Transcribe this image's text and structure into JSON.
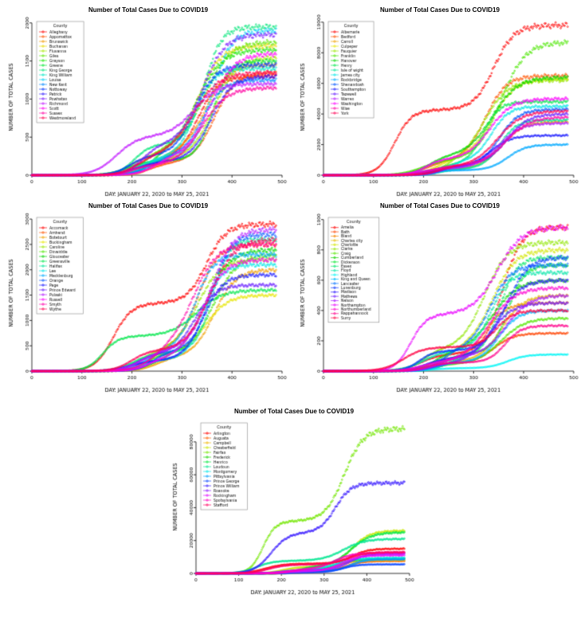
{
  "page": {
    "background": "#ffffff"
  },
  "chart_data": [
    {
      "type": "scatter",
      "title": "Number of Total Cases Due to COVID19",
      "xlabel": "DAY: JANUARY 22, 2020 to MAY 25, 2021",
      "ylabel": "NUMBER OF TOTAL CASES",
      "legend_title": "County",
      "legend_position": "top-left",
      "grid": false,
      "xlim": [
        0,
        500
      ],
      "ylim": [
        0,
        2050
      ],
      "xticks": [
        0,
        100,
        200,
        300,
        400,
        500
      ],
      "yticks": [
        0,
        500,
        1000,
        1500,
        2000
      ],
      "x_days": [
        0,
        489
      ],
      "series": [
        {
          "name": "Alleghany",
          "color": "hsl(0,100%,50%)",
          "final": 1300
        },
        {
          "name": "Appomattox",
          "color": "hsl(19,100%,50%)",
          "final": 1350
        },
        {
          "name": "Brunswick",
          "color": "hsl(38,100%,47%)",
          "final": 1450
        },
        {
          "name": "Buchanan",
          "color": "hsl(57,100%,45%)",
          "final": 1700
        },
        {
          "name": "Fluvanna",
          "color": "hsl(76,100%,45%)",
          "final": 1550
        },
        {
          "name": "Giles",
          "color": "hsl(95,100%,45%)",
          "final": 1750
        },
        {
          "name": "Grayson",
          "color": "hsl(114,100%,45%)",
          "final": 1650
        },
        {
          "name": "Greene",
          "color": "hsl(133,100%,45%)",
          "final": 1500
        },
        {
          "name": "King George",
          "color": "hsl(152,100%,45%)",
          "final": 1950
        },
        {
          "name": "King William",
          "color": "hsl(171,100%,45%)",
          "final": 1400
        },
        {
          "name": "Louisa",
          "color": "hsl(189,100%,48%)",
          "final": 1900
        },
        {
          "name": "New Kent",
          "color": "hsl(208,100%,50%)",
          "final": 1250
        },
        {
          "name": "Nottoway",
          "color": "hsl(227,100%,50%)",
          "final": 1450
        },
        {
          "name": "Patrick",
          "color": "hsl(246,100%,55%)",
          "final": 1300
        },
        {
          "name": "Powhatan",
          "color": "hsl(265,100%,55%)",
          "final": 1850
        },
        {
          "name": "Richmond",
          "color": "hsl(284,100%,55%)",
          "final": 1200,
          "early": true
        },
        {
          "name": "Scott",
          "color": "hsl(303,100%,50%)",
          "final": 1600
        },
        {
          "name": "Sussex",
          "color": "hsl(322,100%,50%)",
          "final": 1150
        },
        {
          "name": "Westmoreland",
          "color": "hsl(341,100%,50%)",
          "final": 1350
        }
      ]
    },
    {
      "type": "scatter",
      "title": "Number of Total Cases Due to COVID19",
      "xlabel": "DAY: JANUARY 22, 2020 to MAY 25, 2021",
      "ylabel": "NUMBER OF TOTAL CASES",
      "legend_title": "County",
      "legend_position": "top-left",
      "grid": false,
      "xlim": [
        0,
        500
      ],
      "ylim": [
        0,
        10200
      ],
      "xticks": [
        0,
        100,
        200,
        300,
        400,
        500
      ],
      "yticks": [
        0,
        2000,
        4000,
        6000,
        8000,
        10000
      ],
      "x_days": [
        0,
        489
      ],
      "series": [
        {
          "name": "Albemarle",
          "color": "hsl(0,100%,50%)",
          "final": 9800,
          "early": true
        },
        {
          "name": "Bedford",
          "color": "hsl(20,100%,50%)",
          "final": 6500
        },
        {
          "name": "Carroll",
          "color": "hsl(40,100%,47%)",
          "final": 3500
        },
        {
          "name": "Culpeper",
          "color": "hsl(60,100%,45%)",
          "final": 6300
        },
        {
          "name": "Fauquier",
          "color": "hsl(80,100%,45%)",
          "final": 6200
        },
        {
          "name": "Franklin",
          "color": "hsl(100,100%,45%)",
          "final": 8700
        },
        {
          "name": "Hanover",
          "color": "hsl(120,100%,42%)",
          "final": 6400
        },
        {
          "name": "Henry",
          "color": "hsl(140,100%,45%)",
          "final": 4800
        },
        {
          "name": "Isle of wight",
          "color": "hsl(160,100%,45%)",
          "final": 3600
        },
        {
          "name": "James city",
          "color": "hsl(180,100%,45%)",
          "final": 4500
        },
        {
          "name": "Rockbridge",
          "color": "hsl(200,100%,50%)",
          "final": 2000
        },
        {
          "name": "Shenandoah",
          "color": "hsl(220,100%,50%)",
          "final": 4300
        },
        {
          "name": "Southampton",
          "color": "hsl(240,100%,55%)",
          "final": 2600
        },
        {
          "name": "Tazewell",
          "color": "hsl(260,100%,55%)",
          "final": 4000
        },
        {
          "name": "Warren",
          "color": "hsl(280,100%,55%)",
          "final": 3400
        },
        {
          "name": "Washington",
          "color": "hsl(300,100%,50%)",
          "final": 5000
        },
        {
          "name": "Wise",
          "color": "hsl(320,100%,50%)",
          "final": 3800
        },
        {
          "name": "York",
          "color": "hsl(340,100%,50%)",
          "final": 4200
        }
      ]
    },
    {
      "type": "scatter",
      "title": "Number of Total Cases Due to COVID19",
      "xlabel": "DAY: JANUARY 22, 2020 to MAY 25, 2021",
      "ylabel": "NUMBER OF TOTAL CASES",
      "legend_title": "County",
      "legend_position": "top-left",
      "grid": false,
      "xlim": [
        0,
        500
      ],
      "ylim": [
        0,
        3080
      ],
      "xticks": [
        0,
        100,
        200,
        300,
        400,
        500
      ],
      "yticks": [
        0,
        500,
        1000,
        1500,
        2000,
        2500,
        3000
      ],
      "x_days": [
        0,
        489
      ],
      "series": [
        {
          "name": "Accomack",
          "color": "hsl(0,100%,50%)",
          "final": 2900,
          "early": true
        },
        {
          "name": "Amherst",
          "color": "hsl(20,100%,50%)",
          "final": 2500
        },
        {
          "name": "Botetourt",
          "color": "hsl(40,100%,47%)",
          "final": 2000
        },
        {
          "name": "Buckingham",
          "color": "hsl(60,100%,45%)",
          "final": 1500
        },
        {
          "name": "Caroline",
          "color": "hsl(80,100%,45%)",
          "final": 2200
        },
        {
          "name": "Dinwiddie",
          "color": "hsl(100,100%,45%)",
          "final": 2300
        },
        {
          "name": "Gloucester",
          "color": "hsl(120,100%,42%)",
          "final": 2400
        },
        {
          "name": "Greensville",
          "color": "hsl(140,100%,45%)",
          "final": 1600,
          "early": true
        },
        {
          "name": "Halifax",
          "color": "hsl(160,100%,45%)",
          "final": 2600
        },
        {
          "name": "Lee",
          "color": "hsl(180,100%,45%)",
          "final": 2100
        },
        {
          "name": "Mecklenburg",
          "color": "hsl(200,100%,50%)",
          "final": 2300
        },
        {
          "name": "Orange",
          "color": "hsl(220,100%,50%)",
          "final": 2700
        },
        {
          "name": "Page",
          "color": "hsl(240,100%,55%)",
          "final": 1900
        },
        {
          "name": "Prince Edward",
          "color": "hsl(260,100%,55%)",
          "final": 1700
        },
        {
          "name": "Pulaski",
          "color": "hsl(280,100%,55%)",
          "final": 2800
        },
        {
          "name": "Russell",
          "color": "hsl(300,100%,50%)",
          "final": 2200
        },
        {
          "name": "Smyth",
          "color": "hsl(320,100%,50%)",
          "final": 2500
        },
        {
          "name": "Wythe",
          "color": "hsl(340,100%,50%)",
          "final": 2600
        }
      ]
    },
    {
      "type": "scatter",
      "title": "Number of Total Cases Due to COVID19",
      "xlabel": "DAY: JANUARY 22, 2020 to MAY 25, 2021",
      "ylabel": "NUMBER OF TOTAL CASES",
      "legend_title": "County",
      "legend_position": "top-left",
      "grid": false,
      "xlim": [
        0,
        500
      ],
      "ylim": [
        0,
        1030
      ],
      "xticks": [
        0,
        100,
        200,
        300,
        400,
        500
      ],
      "yticks": [
        0,
        200,
        400,
        600,
        800,
        1000
      ],
      "x_days": [
        0,
        489
      ],
      "series": [
        {
          "name": "Amelia",
          "color": "hsl(0,100%,50%)",
          "final": 950
        },
        {
          "name": "Bath",
          "color": "hsl(16,100%,50%)",
          "final": 250
        },
        {
          "name": "Bland",
          "color": "hsl(33,100%,48%)",
          "final": 450
        },
        {
          "name": "Charles city",
          "color": "hsl(49,100%,45%)",
          "final": 500
        },
        {
          "name": "Charlotte",
          "color": "hsl(65,100%,45%)",
          "final": 800
        },
        {
          "name": "Clarke",
          "color": "hsl(82,100%,45%)",
          "final": 850
        },
        {
          "name": "Craig",
          "color": "hsl(98,100%,45%)",
          "final": 350
        },
        {
          "name": "Cumberland",
          "color": "hsl(115,100%,42%)",
          "final": 600
        },
        {
          "name": "Dickenson",
          "color": "hsl(131,100%,45%)",
          "final": 700
        },
        {
          "name": "Essex",
          "color": "hsl(147,100%,45%)",
          "final": 750
        },
        {
          "name": "Floyd",
          "color": "hsl(164,100%,45%)",
          "final": 650
        },
        {
          "name": "Highland",
          "color": "hsl(180,100%,48%)",
          "final": 110
        },
        {
          "name": "King and Queen",
          "color": "hsl(196,100%,50%)",
          "final": 400
        },
        {
          "name": "Lancaster",
          "color": "hsl(213,100%,50%)",
          "final": 700
        },
        {
          "name": "Lunenburg",
          "color": "hsl(229,100%,52%)",
          "final": 750
        },
        {
          "name": "Madison",
          "color": "hsl(245,100%,55%)",
          "final": 600
        },
        {
          "name": "Mathews",
          "color": "hsl(262,100%,55%)",
          "final": 450
        },
        {
          "name": "Nelson",
          "color": "hsl(278,100%,55%)",
          "final": 500
        },
        {
          "name": "Northampton",
          "color": "hsl(295,100%,50%)",
          "final": 950,
          "early": true
        },
        {
          "name": "Northumberland",
          "color": "hsl(311,100%,50%)",
          "final": 550
        },
        {
          "name": "Rappahannock",
          "color": "hsl(327,100%,50%)",
          "final": 300
        },
        {
          "name": "Surry",
          "color": "hsl(344,100%,50%)",
          "final": 400,
          "early": true
        }
      ]
    },
    {
      "type": "scatter",
      "title": "Number of Total Cases Due to COVID19",
      "xlabel": "DAY: JANUARY 22, 2020 to MAY 25, 2021",
      "ylabel": "NUMBER OF TOTAL CASES",
      "legend_title": "County",
      "legend_position": "top-left",
      "grid": false,
      "xlim": [
        0,
        500
      ],
      "ylim": [
        0,
        93000
      ],
      "xticks": [
        0,
        100,
        200,
        300,
        400,
        500
      ],
      "yticks": [
        0,
        20000,
        40000,
        60000,
        80000
      ],
      "x_days": [
        0,
        489
      ],
      "series": [
        {
          "name": "Arlington",
          "color": "hsl(0,100%,50%)",
          "final": 15000,
          "early": true
        },
        {
          "name": "Augusta",
          "color": "hsl(23,100%,50%)",
          "final": 7500
        },
        {
          "name": "Campbell",
          "color": "hsl(45,100%,47%)",
          "final": 8000
        },
        {
          "name": "Chesterfield",
          "color": "hsl(68,100%,45%)",
          "final": 26000
        },
        {
          "name": "Fairfax",
          "color": "hsl(90,100%,45%)",
          "final": 88000,
          "early": true
        },
        {
          "name": "Frederick",
          "color": "hsl(113,100%,42%)",
          "final": 9000
        },
        {
          "name": "Henrico",
          "color": "hsl(135,100%,45%)",
          "final": 25000
        },
        {
          "name": "Loudoun",
          "color": "hsl(158,100%,45%)",
          "final": 21000,
          "early": true
        },
        {
          "name": "Montgomery",
          "color": "hsl(180,100%,45%)",
          "final": 9500
        },
        {
          "name": "Pittsylvania",
          "color": "hsl(203,100%,50%)",
          "final": 8500
        },
        {
          "name": "Prince George",
          "color": "hsl(225,100%,52%)",
          "final": 5500
        },
        {
          "name": "Prince William",
          "color": "hsl(248,100%,55%)",
          "final": 55000,
          "early": true
        },
        {
          "name": "Roanoke",
          "color": "hsl(270,100%,55%)",
          "final": 12000
        },
        {
          "name": "Rockingham",
          "color": "hsl(293,100%,52%)",
          "final": 11000
        },
        {
          "name": "Spotsylvania",
          "color": "hsl(315,100%,50%)",
          "final": 12500
        },
        {
          "name": "Stafford",
          "color": "hsl(338,100%,50%)",
          "final": 13000,
          "early": true
        }
      ]
    }
  ]
}
